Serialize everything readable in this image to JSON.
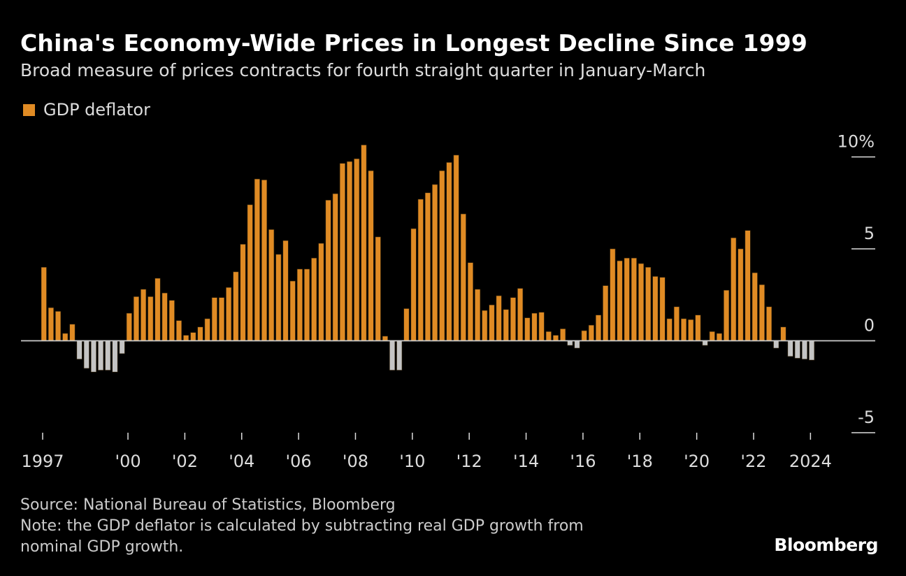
{
  "chart_data": {
    "type": "bar",
    "title": "China's Economy-Wide Prices in Longest Decline Since 1999",
    "subtitle": "Broad measure of prices contracts for fourth straight quarter in January-March",
    "legend": [
      {
        "name": "GDP deflator",
        "color": "#E08B24"
      }
    ],
    "legend_placement": "top-left",
    "negative_color": "#C4C4C4",
    "frequency": "quarterly",
    "start": "1997Q1",
    "end": "2024Q1",
    "ylim": [
      -5.5,
      10.9
    ],
    "yticks": [
      {
        "value": 10,
        "label": "10%"
      },
      {
        "value": 5,
        "label": "5"
      },
      {
        "value": 0,
        "label": "0"
      },
      {
        "value": -5,
        "label": "-5"
      }
    ],
    "xticks": [
      {
        "year": 1997,
        "label": "1997"
      },
      {
        "year": 2000,
        "label": "'00"
      },
      {
        "year": 2002,
        "label": "'02"
      },
      {
        "year": 2004,
        "label": "'04"
      },
      {
        "year": 2006,
        "label": "'06"
      },
      {
        "year": 2008,
        "label": "'08"
      },
      {
        "year": 2010,
        "label": "'10"
      },
      {
        "year": 2012,
        "label": "'12"
      },
      {
        "year": 2014,
        "label": "'14"
      },
      {
        "year": 2016,
        "label": "'16"
      },
      {
        "year": 2018,
        "label": "'18"
      },
      {
        "year": 2020,
        "label": "'20"
      },
      {
        "year": 2022,
        "label": "'22"
      },
      {
        "year": 2024,
        "label": "2024"
      }
    ],
    "grid": false,
    "series": [
      {
        "name": "GDP deflator",
        "values": [
          4.0,
          1.8,
          1.6,
          0.4,
          0.9,
          -1.0,
          -1.5,
          -1.7,
          -1.6,
          -1.6,
          -1.7,
          -0.7,
          1.5,
          2.4,
          2.8,
          2.4,
          3.4,
          2.6,
          2.2,
          1.1,
          0.3,
          0.45,
          0.75,
          1.2,
          2.35,
          2.35,
          2.9,
          3.75,
          5.25,
          7.4,
          8.8,
          8.75,
          6.05,
          4.7,
          5.45,
          3.25,
          3.9,
          3.9,
          4.5,
          5.3,
          7.65,
          8.0,
          9.65,
          9.75,
          9.9,
          10.65,
          9.25,
          5.65,
          0.25,
          -1.6,
          -1.6,
          1.75,
          6.1,
          7.7,
          8.05,
          8.5,
          9.25,
          9.7,
          10.1,
          6.9,
          4.25,
          2.8,
          1.65,
          1.95,
          2.45,
          1.7,
          2.35,
          2.85,
          1.25,
          1.5,
          1.55,
          0.5,
          0.3,
          0.65,
          -0.25,
          -0.4,
          0.55,
          0.85,
          1.4,
          3.0,
          5.0,
          4.35,
          4.5,
          4.5,
          4.2,
          4.0,
          3.5,
          3.45,
          1.2,
          1.85,
          1.2,
          1.15,
          1.4,
          -0.25,
          0.5,
          0.4,
          2.75,
          5.6,
          5.0,
          6.0,
          3.7,
          3.05,
          1.85,
          -0.4,
          0.75,
          -0.85,
          -0.95,
          -1.0,
          -1.05
        ]
      }
    ]
  },
  "footer": {
    "source": "Source: National Bureau of Statistics, Bloomberg",
    "note_line1": "Note: the GDP deflator is calculated by subtracting real GDP growth from",
    "note_line2": "nominal GDP growth.",
    "brand": "Bloomberg"
  }
}
